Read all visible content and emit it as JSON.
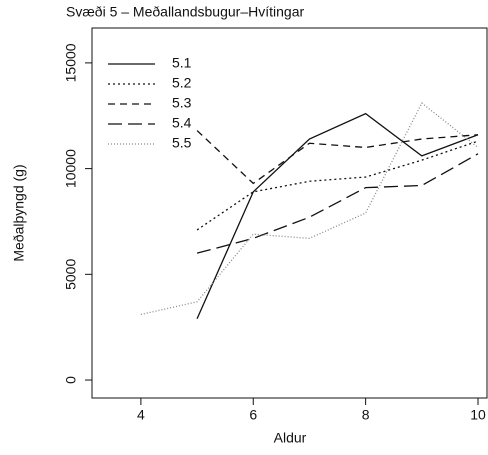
{
  "chart_data": {
    "type": "line",
    "title": "Svæði 5 – Meðallandsbugur–Hvítingar",
    "x_label": "Aldur",
    "y_label": "Meðalþyngd (g)",
    "x": [
      4,
      5,
      6,
      7,
      8,
      9,
      10
    ],
    "series": [
      {
        "name": "5.1",
        "color": "#111111",
        "dash": "none",
        "values": [
          null,
          2900,
          8900,
          11400,
          12600,
          10600,
          11600
        ]
      },
      {
        "name": "5.2",
        "color": "#111111",
        "dash": "2 3",
        "values": [
          null,
          7100,
          8900,
          9400,
          9600,
          10400,
          11300
        ]
      },
      {
        "name": "5.3",
        "color": "#111111",
        "dash": "7 5",
        "values": [
          null,
          11800,
          9300,
          11200,
          11000,
          11400,
          11600
        ]
      },
      {
        "name": "5.4",
        "color": "#111111",
        "dash": "14 6",
        "values": [
          null,
          6000,
          6700,
          7700,
          9100,
          9200,
          10700
        ]
      },
      {
        "name": "5.5",
        "color": "#888888",
        "dash": "1 2",
        "values": [
          3100,
          3700,
          6900,
          6700,
          7900,
          13100,
          11000
        ]
      }
    ],
    "xlim": [
      3.13,
      10.16
    ],
    "xticks": [
      4,
      6,
      8,
      10
    ],
    "ylim": [
      -850,
      16650
    ],
    "yticks": [
      0,
      5000,
      10000,
      15000
    ],
    "legend": "top-left"
  }
}
